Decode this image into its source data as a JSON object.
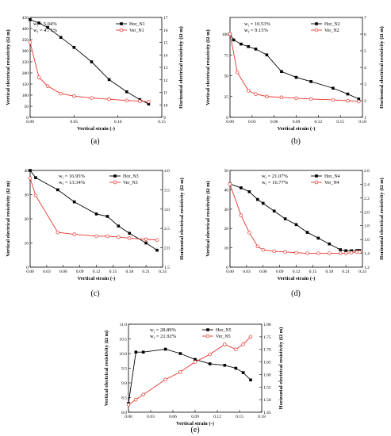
{
  "chart_data": [
    {
      "id": "a",
      "type": "line",
      "panel_label": "(a)",
      "xlabel": "Vertical strain (-)",
      "ylabel_left": "Vertical electrical resistivity (Ω m)",
      "ylabel_right": "Horizontal electrical resistivity (Ω m)",
      "annotation": [
        "w",
        "i",
        " = 5.04%",
        "w",
        "f",
        " = 4.71%"
      ],
      "xlim": [
        0,
        0.15
      ],
      "xticks": [
        "0.00",
        "0.05",
        "0.10",
        "0.15"
      ],
      "xtick_values": [
        0,
        0.05,
        0.1,
        0.15
      ],
      "ylim_left": [
        0,
        450
      ],
      "yticks_left": [
        "0",
        "50",
        "100",
        "150",
        "200",
        "250",
        "300",
        "350",
        "400",
        "450"
      ],
      "ytick_values_left": [
        0,
        50,
        100,
        150,
        200,
        250,
        300,
        350,
        400,
        450
      ],
      "ylim_right": [
        9,
        17
      ],
      "yticks_right": [
        "9",
        "10",
        "11",
        "12",
        "13",
        "14",
        "15",
        "16",
        "17"
      ],
      "ytick_values_right": [
        9,
        10,
        11,
        12,
        13,
        14,
        15,
        16,
        17
      ],
      "series": [
        {
          "name": "Hor_N1",
          "axis": "left",
          "color": "#000000",
          "marker": "square",
          "x": [
            0.0,
            0.01,
            0.02,
            0.035,
            0.05,
            0.07,
            0.09,
            0.11,
            0.125,
            0.135
          ],
          "y": [
            440,
            425,
            405,
            360,
            315,
            250,
            170,
            115,
            80,
            60
          ]
        },
        {
          "name": "Ver_N1",
          "axis": "right",
          "color": "#e8332d",
          "marker": "circle",
          "x": [
            0.0,
            0.01,
            0.02,
            0.035,
            0.05,
            0.07,
            0.09,
            0.11,
            0.125,
            0.135
          ],
          "y": [
            15.0,
            12.2,
            11.5,
            10.9,
            10.7,
            10.55,
            10.45,
            10.35,
            10.3,
            10.25
          ]
        }
      ]
    },
    {
      "id": "b",
      "type": "line",
      "panel_label": "(b)",
      "xlabel": "Vertical strain (-)",
      "ylabel_left": "Vertical electrical resistivity (Ω m)",
      "ylabel_right": "Horizontal electrical resistivity (Ω m)",
      "annotation": [
        "w",
        "i",
        " = 10.53%",
        "w",
        "f",
        " = 9.15%"
      ],
      "xlim": [
        0,
        0.18
      ],
      "xticks": [
        "0.00",
        "0.03",
        "0.06",
        "0.09",
        "0.12",
        "0.15",
        "0.18"
      ],
      "xtick_values": [
        0,
        0.03,
        0.06,
        0.09,
        0.12,
        0.15,
        0.18
      ],
      "ylim_left": [
        0,
        120
      ],
      "yticks_left": [
        "0",
        "25",
        "50",
        "75",
        "100"
      ],
      "ytick_values_left": [
        0,
        25,
        50,
        75,
        100
      ],
      "ylim_right": [
        1,
        7
      ],
      "yticks_right": [
        "1",
        "2",
        "3",
        "4",
        "5",
        "6",
        "7"
      ],
      "ytick_values_right": [
        1,
        2,
        3,
        4,
        5,
        6,
        7
      ],
      "series": [
        {
          "name": "Hor_N2",
          "axis": "left",
          "color": "#000000",
          "marker": "square",
          "x": [
            0.0,
            0.005,
            0.015,
            0.025,
            0.035,
            0.05,
            0.07,
            0.09,
            0.11,
            0.14,
            0.16,
            0.175
          ],
          "y": [
            100,
            93,
            88,
            85,
            82,
            75,
            55,
            48,
            43,
            35,
            28,
            22
          ]
        },
        {
          "name": "Ver_N2",
          "axis": "right",
          "color": "#e8332d",
          "marker": "circle",
          "x": [
            0.0,
            0.01,
            0.025,
            0.035,
            0.05,
            0.07,
            0.09,
            0.11,
            0.14,
            0.16,
            0.175
          ],
          "y": [
            6.0,
            3.7,
            2.6,
            2.4,
            2.25,
            2.2,
            2.15,
            2.1,
            2.05,
            2.0,
            1.95
          ]
        }
      ]
    },
    {
      "id": "c",
      "type": "line",
      "panel_label": "(c)",
      "xlabel": "Vertical strain (-)",
      "ylabel_left": "Vertical electrical resistivity (Ω m)",
      "ylabel_right": "Horizontal electrical resistivity (Ω m)",
      "annotation": [
        "w",
        "i",
        " = 16.95%",
        "w",
        "f",
        " = 13.34%"
      ],
      "xlim": [
        0,
        0.24
      ],
      "xticks": [
        "0.00",
        "0.03",
        "0.06",
        "0.09",
        "0.12",
        "0.15",
        "0.18",
        "0.21",
        "0.24"
      ],
      "xtick_values": [
        0,
        0.03,
        0.06,
        0.09,
        0.12,
        0.15,
        0.18,
        0.21,
        0.24
      ],
      "ylim_left": [
        0,
        40
      ],
      "yticks_left": [
        "0",
        "10",
        "20",
        "30",
        "40"
      ],
      "ytick_values_left": [
        0,
        10,
        20,
        30,
        40
      ],
      "ylim_right": [
        1.5,
        4.0
      ],
      "yticks_right": [
        "1.5",
        "2.0",
        "2.5",
        "3.0",
        "3.5",
        "4.0"
      ],
      "ytick_values_right": [
        1.5,
        2.0,
        2.5,
        3.0,
        3.5,
        4.0
      ],
      "series": [
        {
          "name": "Hor_N3",
          "axis": "left",
          "color": "#000000",
          "marker": "square",
          "x": [
            0.0,
            0.01,
            0.05,
            0.08,
            0.12,
            0.14,
            0.16,
            0.18,
            0.21,
            0.23
          ],
          "y": [
            40,
            37,
            32,
            27,
            22,
            21,
            17,
            14,
            10,
            7
          ]
        },
        {
          "name": "Ver_N3",
          "axis": "right",
          "color": "#e8332d",
          "marker": "circle",
          "x": [
            0.0,
            0.01,
            0.05,
            0.08,
            0.12,
            0.14,
            0.16,
            0.18,
            0.21,
            0.23
          ],
          "y": [
            3.8,
            3.35,
            2.4,
            2.35,
            2.3,
            2.3,
            2.28,
            2.25,
            2.22,
            2.2
          ]
        }
      ]
    },
    {
      "id": "d",
      "type": "line",
      "panel_label": "(d)",
      "xlabel": "Vertical strain (-)",
      "ylabel_left": "Vertical electrical resistivity (Ω m)",
      "ylabel_right": "Horizontal electrical resistivity (Ω m)",
      "annotation": [
        "w",
        "i",
        " = 21.07%",
        "w",
        "f",
        " = 16.77%"
      ],
      "xlim": [
        0,
        0.24
      ],
      "xticks": [
        "0.00",
        "0.03",
        "0.06",
        "0.09",
        "0.12",
        "0.15",
        "0.18",
        "0.21",
        "0.24"
      ],
      "xtick_values": [
        0,
        0.03,
        0.06,
        0.09,
        0.12,
        0.15,
        0.18,
        0.21,
        0.24
      ],
      "ylim_left": [
        0,
        50
      ],
      "yticks_left": [
        "0",
        "10",
        "20",
        "30",
        "40",
        "50"
      ],
      "ytick_values_left": [
        0,
        10,
        20,
        30,
        40,
        50
      ],
      "ylim_right": [
        1.2,
        2.6
      ],
      "yticks_right": [
        "1.2",
        "1.4",
        "1.6",
        "1.8",
        "2.0",
        "2.2",
        "2.4",
        "2.6"
      ],
      "ytick_values_right": [
        1.2,
        1.4,
        1.6,
        1.8,
        2.0,
        2.2,
        2.4,
        2.6
      ],
      "series": [
        {
          "name": "Hor_N4",
          "axis": "left",
          "color": "#000000",
          "marker": "square",
          "x": [
            0.0,
            0.02,
            0.035,
            0.05,
            0.06,
            0.08,
            0.1,
            0.12,
            0.14,
            0.16,
            0.18,
            0.2,
            0.21,
            0.22,
            0.23,
            0.235
          ],
          "y": [
            43,
            41,
            39,
            35,
            33,
            29,
            25,
            22,
            18,
            15,
            12,
            9,
            8.5,
            8.5,
            8.6,
            8.6
          ]
        },
        {
          "name": "Ver_N4",
          "axis": "right",
          "color": "#e8332d",
          "marker": "circle",
          "x": [
            0.0,
            0.02,
            0.035,
            0.05,
            0.06,
            0.08,
            0.1,
            0.12,
            0.14,
            0.16,
            0.18,
            0.2,
            0.21,
            0.22,
            0.23,
            0.235
          ],
          "y": [
            2.4,
            1.95,
            1.7,
            1.5,
            1.45,
            1.43,
            1.42,
            1.41,
            1.4,
            1.4,
            1.4,
            1.4,
            1.4,
            1.41,
            1.42,
            1.42
          ]
        }
      ]
    },
    {
      "id": "e",
      "type": "line",
      "panel_label": "(e)",
      "xlabel": "Vertical strain (-)",
      "ylabel_left": "Vertical electrical resistivity (Ω m)",
      "ylabel_right": "Horizontal electrical resistivity (Ω m)",
      "annotation": [
        "w",
        "i",
        " = 28.89%",
        "w",
        "f",
        " = 21.92%"
      ],
      "xlim": [
        0,
        0.18
      ],
      "xticks": [
        "0.00",
        "0.03",
        "0.06",
        "0.09",
        "0.12",
        "0.15",
        "0.18"
      ],
      "xtick_values": [
        0,
        0.03,
        0.06,
        0.09,
        0.12,
        0.15,
        0.18
      ],
      "ylim_left": [
        8.0,
        11.0
      ],
      "yticks_left": [
        "8.0",
        "8.5",
        "9.0",
        "9.5",
        "10.0",
        "10.5",
        "11.0"
      ],
      "ytick_values_left": [
        8.0,
        8.5,
        9.0,
        9.5,
        10.0,
        10.5,
        11.0
      ],
      "ylim_right": [
        1.45,
        1.8
      ],
      "yticks_right": [
        "1.45",
        "1.50",
        "1.55",
        "1.60",
        "1.65",
        "1.70",
        "1.75",
        "1.80"
      ],
      "ytick_values_right": [
        1.45,
        1.5,
        1.55,
        1.6,
        1.65,
        1.7,
        1.75,
        1.8
      ],
      "series": [
        {
          "name": "Hor_N5",
          "axis": "left",
          "color": "#000000",
          "marker": "square",
          "x": [
            0.0,
            0.01,
            0.02,
            0.05,
            0.07,
            0.09,
            0.11,
            0.13,
            0.145,
            0.155,
            0.165
          ],
          "y": [
            8.3,
            10.05,
            10.05,
            10.15,
            10.0,
            9.8,
            9.65,
            9.6,
            9.5,
            9.35,
            9.1
          ]
        },
        {
          "name": "Ver_N5",
          "axis": "right",
          "color": "#e8332d",
          "marker": "circle",
          "x": [
            0.0,
            0.01,
            0.02,
            0.05,
            0.07,
            0.09,
            0.11,
            0.13,
            0.145,
            0.155,
            0.165
          ],
          "y": [
            1.48,
            1.5,
            1.52,
            1.58,
            1.61,
            1.65,
            1.68,
            1.72,
            1.7,
            1.72,
            1.75
          ]
        }
      ]
    }
  ]
}
